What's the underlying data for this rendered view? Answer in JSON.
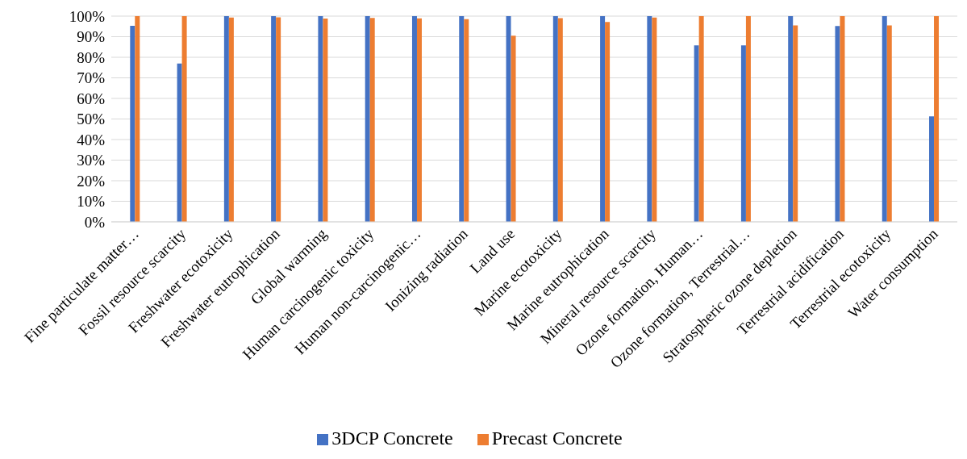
{
  "chart_data": {
    "type": "bar",
    "categories": [
      "Fine particulate matter…",
      "Fossil resource scarcity",
      "Freshwater ecotoxicity",
      "Freshwater eutrophication",
      "Global warming",
      "Human carcinogenic toxicity",
      "Human non-carcinogenic…",
      "Ionizing radiation",
      "Land use",
      "Marine ecotoxicity",
      "Marine eutrophication",
      "Mineral resource scarcity",
      "Ozone formation, Human…",
      "Ozone formation, Terrestrial…",
      "Stratospheric ozone depletion",
      "Terrestrial acidification",
      "Terrestrial ecotoxicity",
      "Water consumption"
    ],
    "series": [
      {
        "name": "3DCP Concrete",
        "color": "#4472c4",
        "values": [
          95.3,
          77,
          100,
          100,
          100,
          100,
          100,
          100,
          100,
          100,
          100,
          100,
          85.8,
          85.8,
          100,
          95.2,
          100,
          51.3
        ]
      },
      {
        "name": "Precast Concrete",
        "color": "#ed7d31",
        "values": [
          100,
          100,
          99.3,
          99.4,
          98.8,
          99.1,
          98.9,
          98.5,
          90.5,
          99,
          97.2,
          99.3,
          100,
          100,
          95.5,
          100,
          95.5,
          100
        ]
      }
    ],
    "ylim": [
      0,
      100
    ],
    "yticks": [
      {
        "value": 0,
        "label": "0%"
      },
      {
        "value": 10,
        "label": "10%"
      },
      {
        "value": 20,
        "label": "20%"
      },
      {
        "value": 30,
        "label": "30%"
      },
      {
        "value": 40,
        "label": "40%"
      },
      {
        "value": 50,
        "label": "50%"
      },
      {
        "value": 60,
        "label": "60%"
      },
      {
        "value": 70,
        "label": "70%"
      },
      {
        "value": 80,
        "label": "80%"
      },
      {
        "value": 90,
        "label": "90%"
      },
      {
        "value": 100,
        "label": "100%"
      }
    ],
    "grid": "y",
    "legend": "bottom"
  }
}
